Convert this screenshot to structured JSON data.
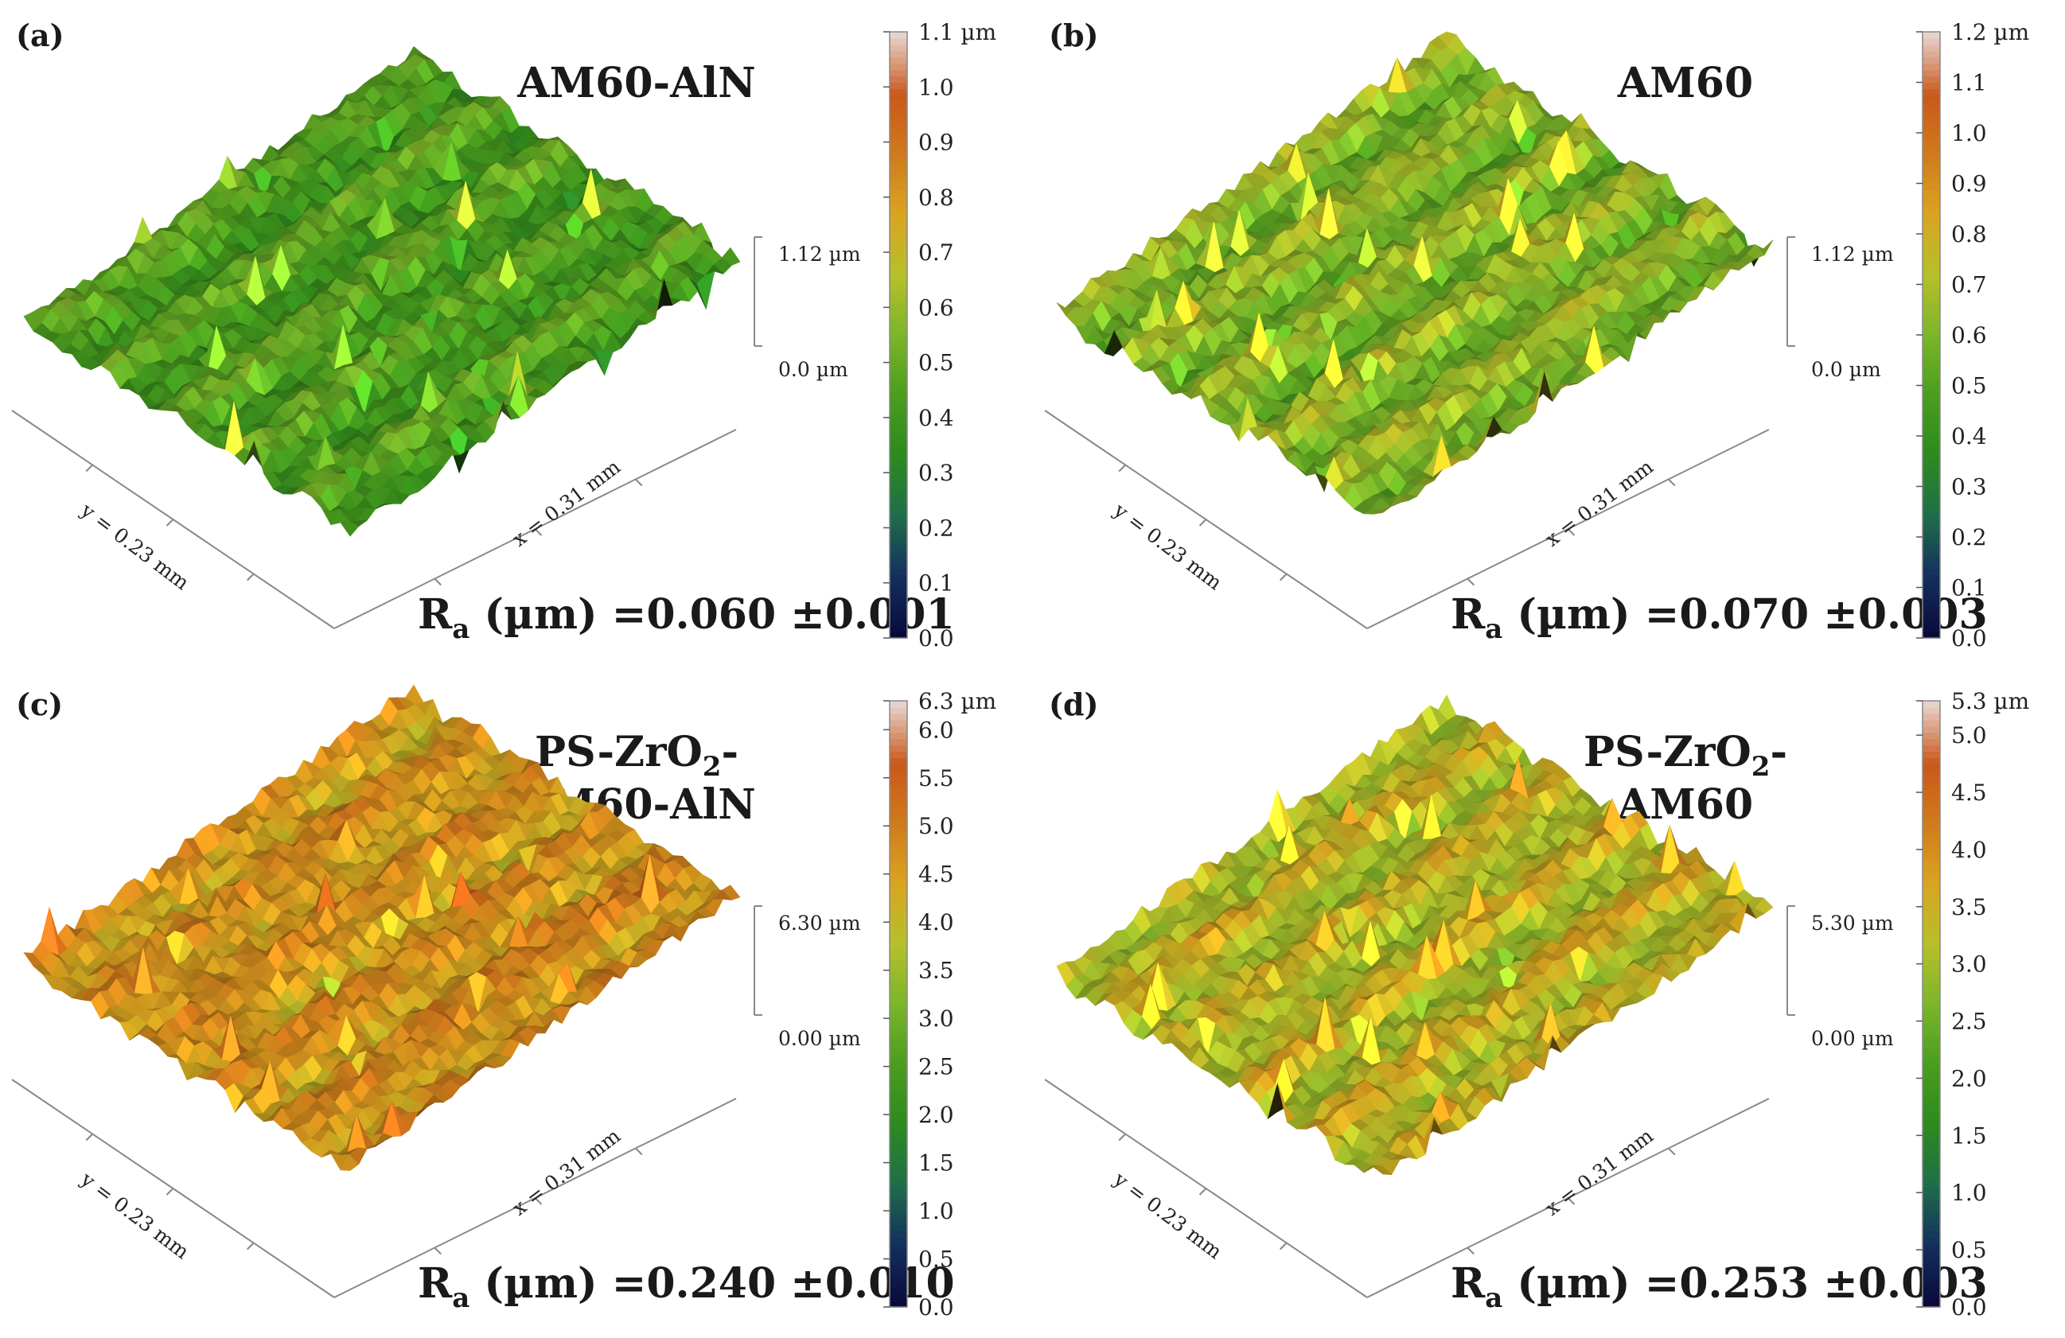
{
  "figure": {
    "panels": [
      {
        "label": "(a)",
        "title": [
          "AM60-AlN"
        ],
        "ra_value": "=0.060 ±0.001",
        "z_top": "1.12 µm",
        "z_bottom": "0.0 µm"
      },
      {
        "label": "(b)",
        "title": [
          "AM60"
        ],
        "ra_value": "=0.070 ±0.003",
        "z_top": "1.12 µm",
        "z_bottom": "0.0 µm"
      },
      {
        "label": "(c)",
        "title": [
          "PS-ZrO₂-",
          "AM60-AlN"
        ],
        "ra_value": "=0.240 ±0.010",
        "z_top": "6.30 µm",
        "z_bottom": "0.00 µm"
      },
      {
        "label": "(d)",
        "title": [
          "PS-ZrO₂-",
          "AM60"
        ],
        "ra_value": "=0.253 ±0.003",
        "z_top": "5.30 µm",
        "z_bottom": "0.00 µm"
      }
    ],
    "ra_prefix": "R",
    "ra_subscript": "a",
    "ra_unit": " (µm) ",
    "x_axis_label": "x = 0.31 mm",
    "y_axis_label": "y = 0.23 mm"
  },
  "colors": {
    "colormap": [
      "#0a0a3a",
      "#14305e",
      "#1f6e4a",
      "#2e8a1e",
      "#4a9d1e",
      "#7cb52a",
      "#b5c02a",
      "#d9a520",
      "#d07b1c",
      "#c9581a",
      "#e6d2cc"
    ],
    "text": "#1a1a1a"
  },
  "chart_data": [
    {
      "type": "heatmap",
      "title": "AM60-AlN",
      "surface": "3D optical profilometry topography",
      "x_extent_mm": 0.31,
      "y_extent_mm": 0.23,
      "z_range_um": [
        0.0,
        1.12
      ],
      "colorbar": {
        "min": 0.0,
        "max": 1.1,
        "unit": "µm",
        "ticks": [
          "0.0",
          "0.1",
          "0.2",
          "0.3",
          "0.4",
          "0.5",
          "0.6",
          "0.7",
          "0.8",
          "0.9",
          "1.0"
        ],
        "max_label": "1.1 µm"
      },
      "dominant_height_um": 0.45,
      "roughness_Ra_um": 0.06,
      "roughness_Ra_err_um": 0.001
    },
    {
      "type": "heatmap",
      "title": "AM60",
      "surface": "3D optical profilometry topography",
      "x_extent_mm": 0.31,
      "y_extent_mm": 0.23,
      "z_range_um": [
        0.0,
        1.12
      ],
      "colorbar": {
        "min": 0.0,
        "max": 1.2,
        "unit": "µm",
        "ticks": [
          "0.0",
          "0.1",
          "0.2",
          "0.3",
          "0.4",
          "0.5",
          "0.6",
          "0.7",
          "0.8",
          "0.9",
          "1.0",
          "1.1"
        ],
        "max_label": "1.2 µm"
      },
      "dominant_height_um": 0.62,
      "roughness_Ra_um": 0.07,
      "roughness_Ra_err_um": 0.003
    },
    {
      "type": "heatmap",
      "title": "PS-ZrO2-AM60-AlN",
      "surface": "3D optical profilometry topography",
      "x_extent_mm": 0.31,
      "y_extent_mm": 0.23,
      "z_range_um": [
        0.0,
        6.3
      ],
      "colorbar": {
        "min": 0.0,
        "max": 6.3,
        "unit": "µm",
        "ticks": [
          "0.0",
          "0.5",
          "1.0",
          "1.5",
          "2.0",
          "2.5",
          "3.0",
          "3.5",
          "4.0",
          "4.5",
          "5.0",
          "5.5",
          "6.0"
        ],
        "max_label": "6.3 µm"
      },
      "dominant_height_um": 4.6,
      "roughness_Ra_um": 0.24,
      "roughness_Ra_err_um": 0.01
    },
    {
      "type": "heatmap",
      "title": "PS-ZrO2-AM60",
      "surface": "3D optical profilometry topography",
      "x_extent_mm": 0.31,
      "y_extent_mm": 0.23,
      "z_range_um": [
        0.0,
        5.3
      ],
      "colorbar": {
        "min": 0.0,
        "max": 5.3,
        "unit": "µm",
        "ticks": [
          "0.0",
          "0.5",
          "1.0",
          "1.5",
          "2.0",
          "2.5",
          "3.0",
          "3.5",
          "4.0",
          "4.5",
          "5.0"
        ],
        "max_label": "5.3 µm"
      },
      "dominant_height_um": 3.3,
      "roughness_Ra_um": 0.253,
      "roughness_Ra_err_um": 0.003
    }
  ]
}
